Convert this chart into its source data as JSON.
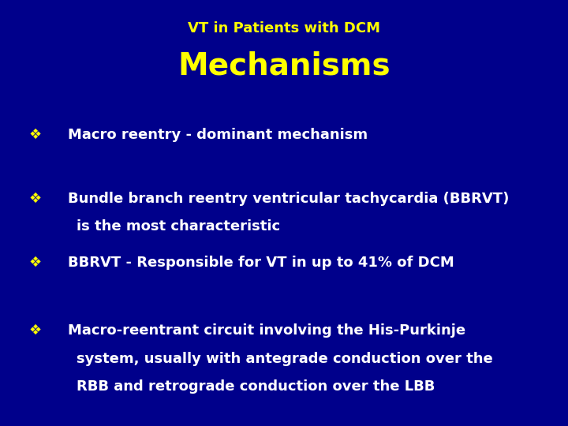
{
  "background_color": "#00008B",
  "subtitle": "VT in Patients with DCM",
  "title": "Mechanisms",
  "subtitle_color": "#FFFF00",
  "title_color": "#FFFF00",
  "subtitle_fontsize": 13,
  "title_fontsize": 28,
  "bullet_color": "#FFFF00",
  "text_color": "#FFFFFF",
  "bullet_symbol": "❖",
  "bullets": [
    {
      "text": "Macro reentry - dominant mechanism",
      "indent2": null
    },
    {
      "text": "Bundle branch reentry ventricular tachycardia (BBRVT)",
      "indent2": "is the most characteristic"
    },
    {
      "text": "BBRVT - Responsible for VT in up to 41% of DCM",
      "indent2": null
    },
    {
      "text": "Macro-reentrant circuit involving the His-Purkinje",
      "indent2": "system, usually with antegrade conduction over the\nRBB and retrograde conduction over the LBB"
    }
  ],
  "bullet_fontsize": 13,
  "figsize": [
    7.2,
    5.4
  ],
  "dpi": 100
}
